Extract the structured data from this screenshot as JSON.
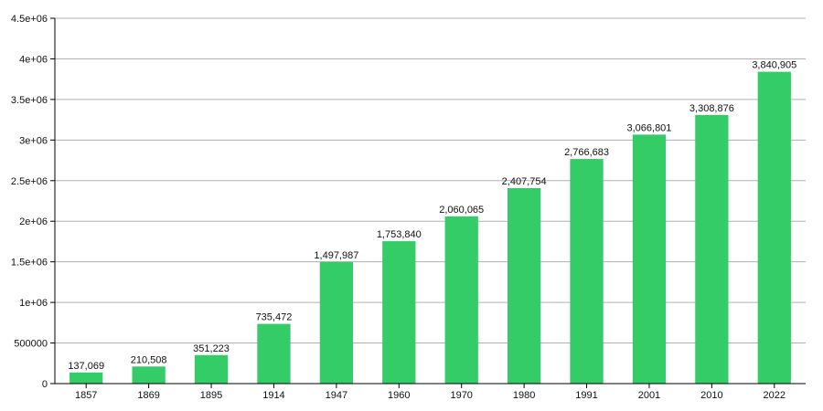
{
  "chart_data": {
    "type": "bar",
    "title": "",
    "xlabel": "",
    "ylabel": "",
    "categories": [
      "1857",
      "1869",
      "1895",
      "1914",
      "1947",
      "1960",
      "1970",
      "1980",
      "1991",
      "2001",
      "2010",
      "2022"
    ],
    "values": [
      137069,
      210508,
      351223,
      735472,
      1497987,
      1753840,
      2060065,
      2407754,
      2766683,
      3066801,
      3308876,
      3840905
    ],
    "data_labels": [
      "137,069",
      "210,508",
      "351,223",
      "735,472",
      "1,497,987",
      "1,753,840",
      "2,060,065",
      "2,407,754",
      "2,766,683",
      "3,066,801",
      "3,308,876",
      "3,840,905"
    ],
    "ylim": [
      0,
      4500000
    ],
    "yticks": [
      0,
      500000,
      1000000,
      1500000,
      2000000,
      2500000,
      3000000,
      3500000,
      4000000,
      4500000
    ],
    "ytick_labels": [
      "0",
      "500000",
      "1e+06",
      "1.5e+06",
      "2e+06",
      "2.5e+06",
      "3e+06",
      "3.5e+06",
      "4e+06",
      "4.5e+06"
    ],
    "grid": true,
    "bar_color": "#33cc66"
  }
}
